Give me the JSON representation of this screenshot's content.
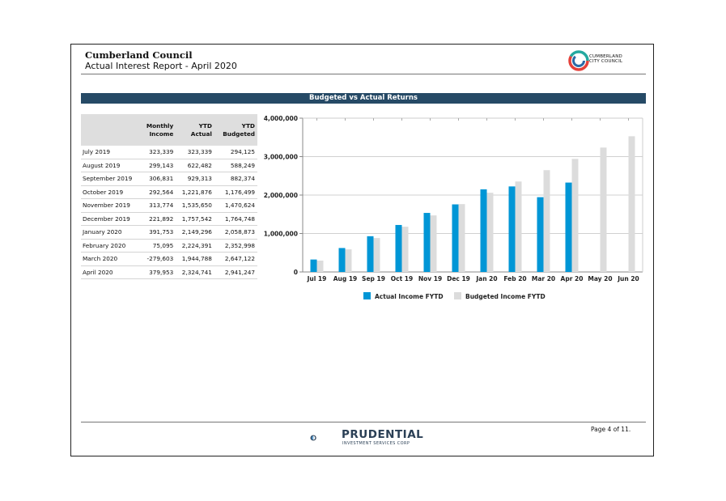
{
  "header": {
    "title": "Cumberland Council",
    "subtitle": "Actual Interest Report - April 2020",
    "logo_text_line1": "CUMBERLAND",
    "logo_text_line2": "CITY COUNCIL"
  },
  "banner": {
    "title": "Budgeted vs Actual Returns"
  },
  "table": {
    "columns": [
      "",
      "Monthly Income",
      "YTD Actual",
      "YTD Budgeted"
    ],
    "rows": [
      {
        "month": "July 2019",
        "monthly": "323,339",
        "ytd_actual": "323,339",
        "ytd_budget": "294,125"
      },
      {
        "month": "August 2019",
        "monthly": "299,143",
        "ytd_actual": "622,482",
        "ytd_budget": "588,249"
      },
      {
        "month": "September 2019",
        "monthly": "306,831",
        "ytd_actual": "929,313",
        "ytd_budget": "882,374"
      },
      {
        "month": "October 2019",
        "monthly": "292,564",
        "ytd_actual": "1,221,876",
        "ytd_budget": "1,176,499"
      },
      {
        "month": "November 2019",
        "monthly": "313,774",
        "ytd_actual": "1,535,650",
        "ytd_budget": "1,470,624"
      },
      {
        "month": "December 2019",
        "monthly": "221,892",
        "ytd_actual": "1,757,542",
        "ytd_budget": "1,764,748"
      },
      {
        "month": "January 2020",
        "monthly": "391,753",
        "ytd_actual": "2,149,296",
        "ytd_budget": "2,058,873"
      },
      {
        "month": "February 2020",
        "monthly": "75,095",
        "ytd_actual": "2,224,391",
        "ytd_budget": "2,352,998"
      },
      {
        "month": "March 2020",
        "monthly": "-279,603",
        "ytd_actual": "1,944,788",
        "ytd_budget": "2,647,122"
      },
      {
        "month": "April 2020",
        "monthly": "379,953",
        "ytd_actual": "2,324,741",
        "ytd_budget": "2,941,247"
      }
    ]
  },
  "chart_data": {
    "type": "bar",
    "categories": [
      "Jul 19",
      "Aug 19",
      "Sep 19",
      "Oct 19",
      "Nov 19",
      "Dec 19",
      "Jan 20",
      "Feb 20",
      "Mar 20",
      "Apr 20",
      "May 20",
      "Jun 20"
    ],
    "series": [
      {
        "name": "Actual Income FYTD",
        "color": "#0096d6",
        "values": [
          323339,
          622482,
          929313,
          1221876,
          1535650,
          1757542,
          2149296,
          2224391,
          1944788,
          2324741,
          null,
          null
        ]
      },
      {
        "name": "Budgeted Income FYTD",
        "color": "#dcdcdc",
        "values": [
          294125,
          588249,
          882374,
          1176499,
          1470624,
          1764748,
          2058873,
          2352998,
          2647122,
          2941247,
          3235372,
          3529497
        ]
      }
    ],
    "y_ticks": [
      "0",
      "1,000,000",
      "2,000,000",
      "3,000,000",
      "4,000,000"
    ],
    "ylim": [
      0,
      4000000
    ],
    "grid": true,
    "legend_position": "bottom"
  },
  "footer": {
    "company": "PRUDENTIAL",
    "tagline": "INVESTMENT SERVICES CORP",
    "page": "Page 4 of 11."
  }
}
